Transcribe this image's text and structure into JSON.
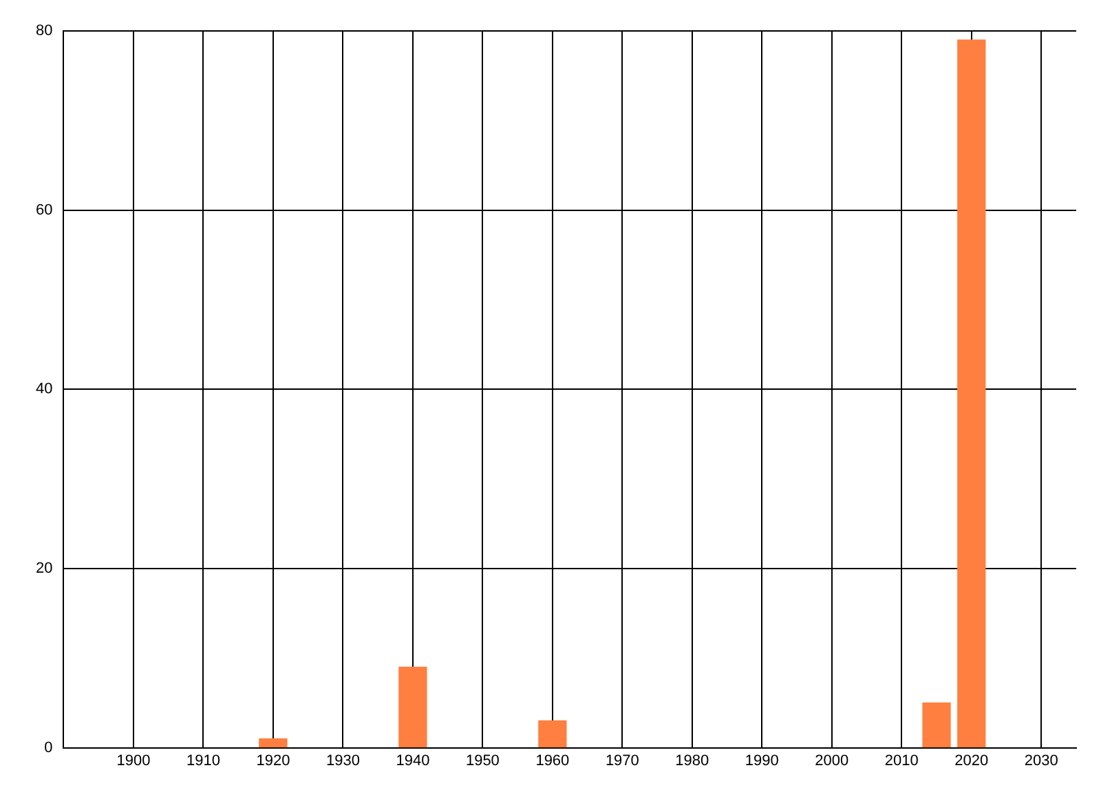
{
  "chart_data": {
    "type": "bar",
    "x": [
      1920,
      1940,
      1960,
      2015,
      2020
    ],
    "values": [
      1,
      9,
      3,
      5,
      79
    ],
    "color": "#ff7f40",
    "xlim": [
      1890,
      2035
    ],
    "xticks": [
      1900,
      1910,
      1920,
      1930,
      1940,
      1950,
      1960,
      1970,
      1980,
      1990,
      2000,
      2010,
      2020,
      2030
    ],
    "ylim": [
      0,
      80
    ],
    "yticks": [
      0,
      20,
      40,
      60,
      80
    ],
    "grid": true
  }
}
